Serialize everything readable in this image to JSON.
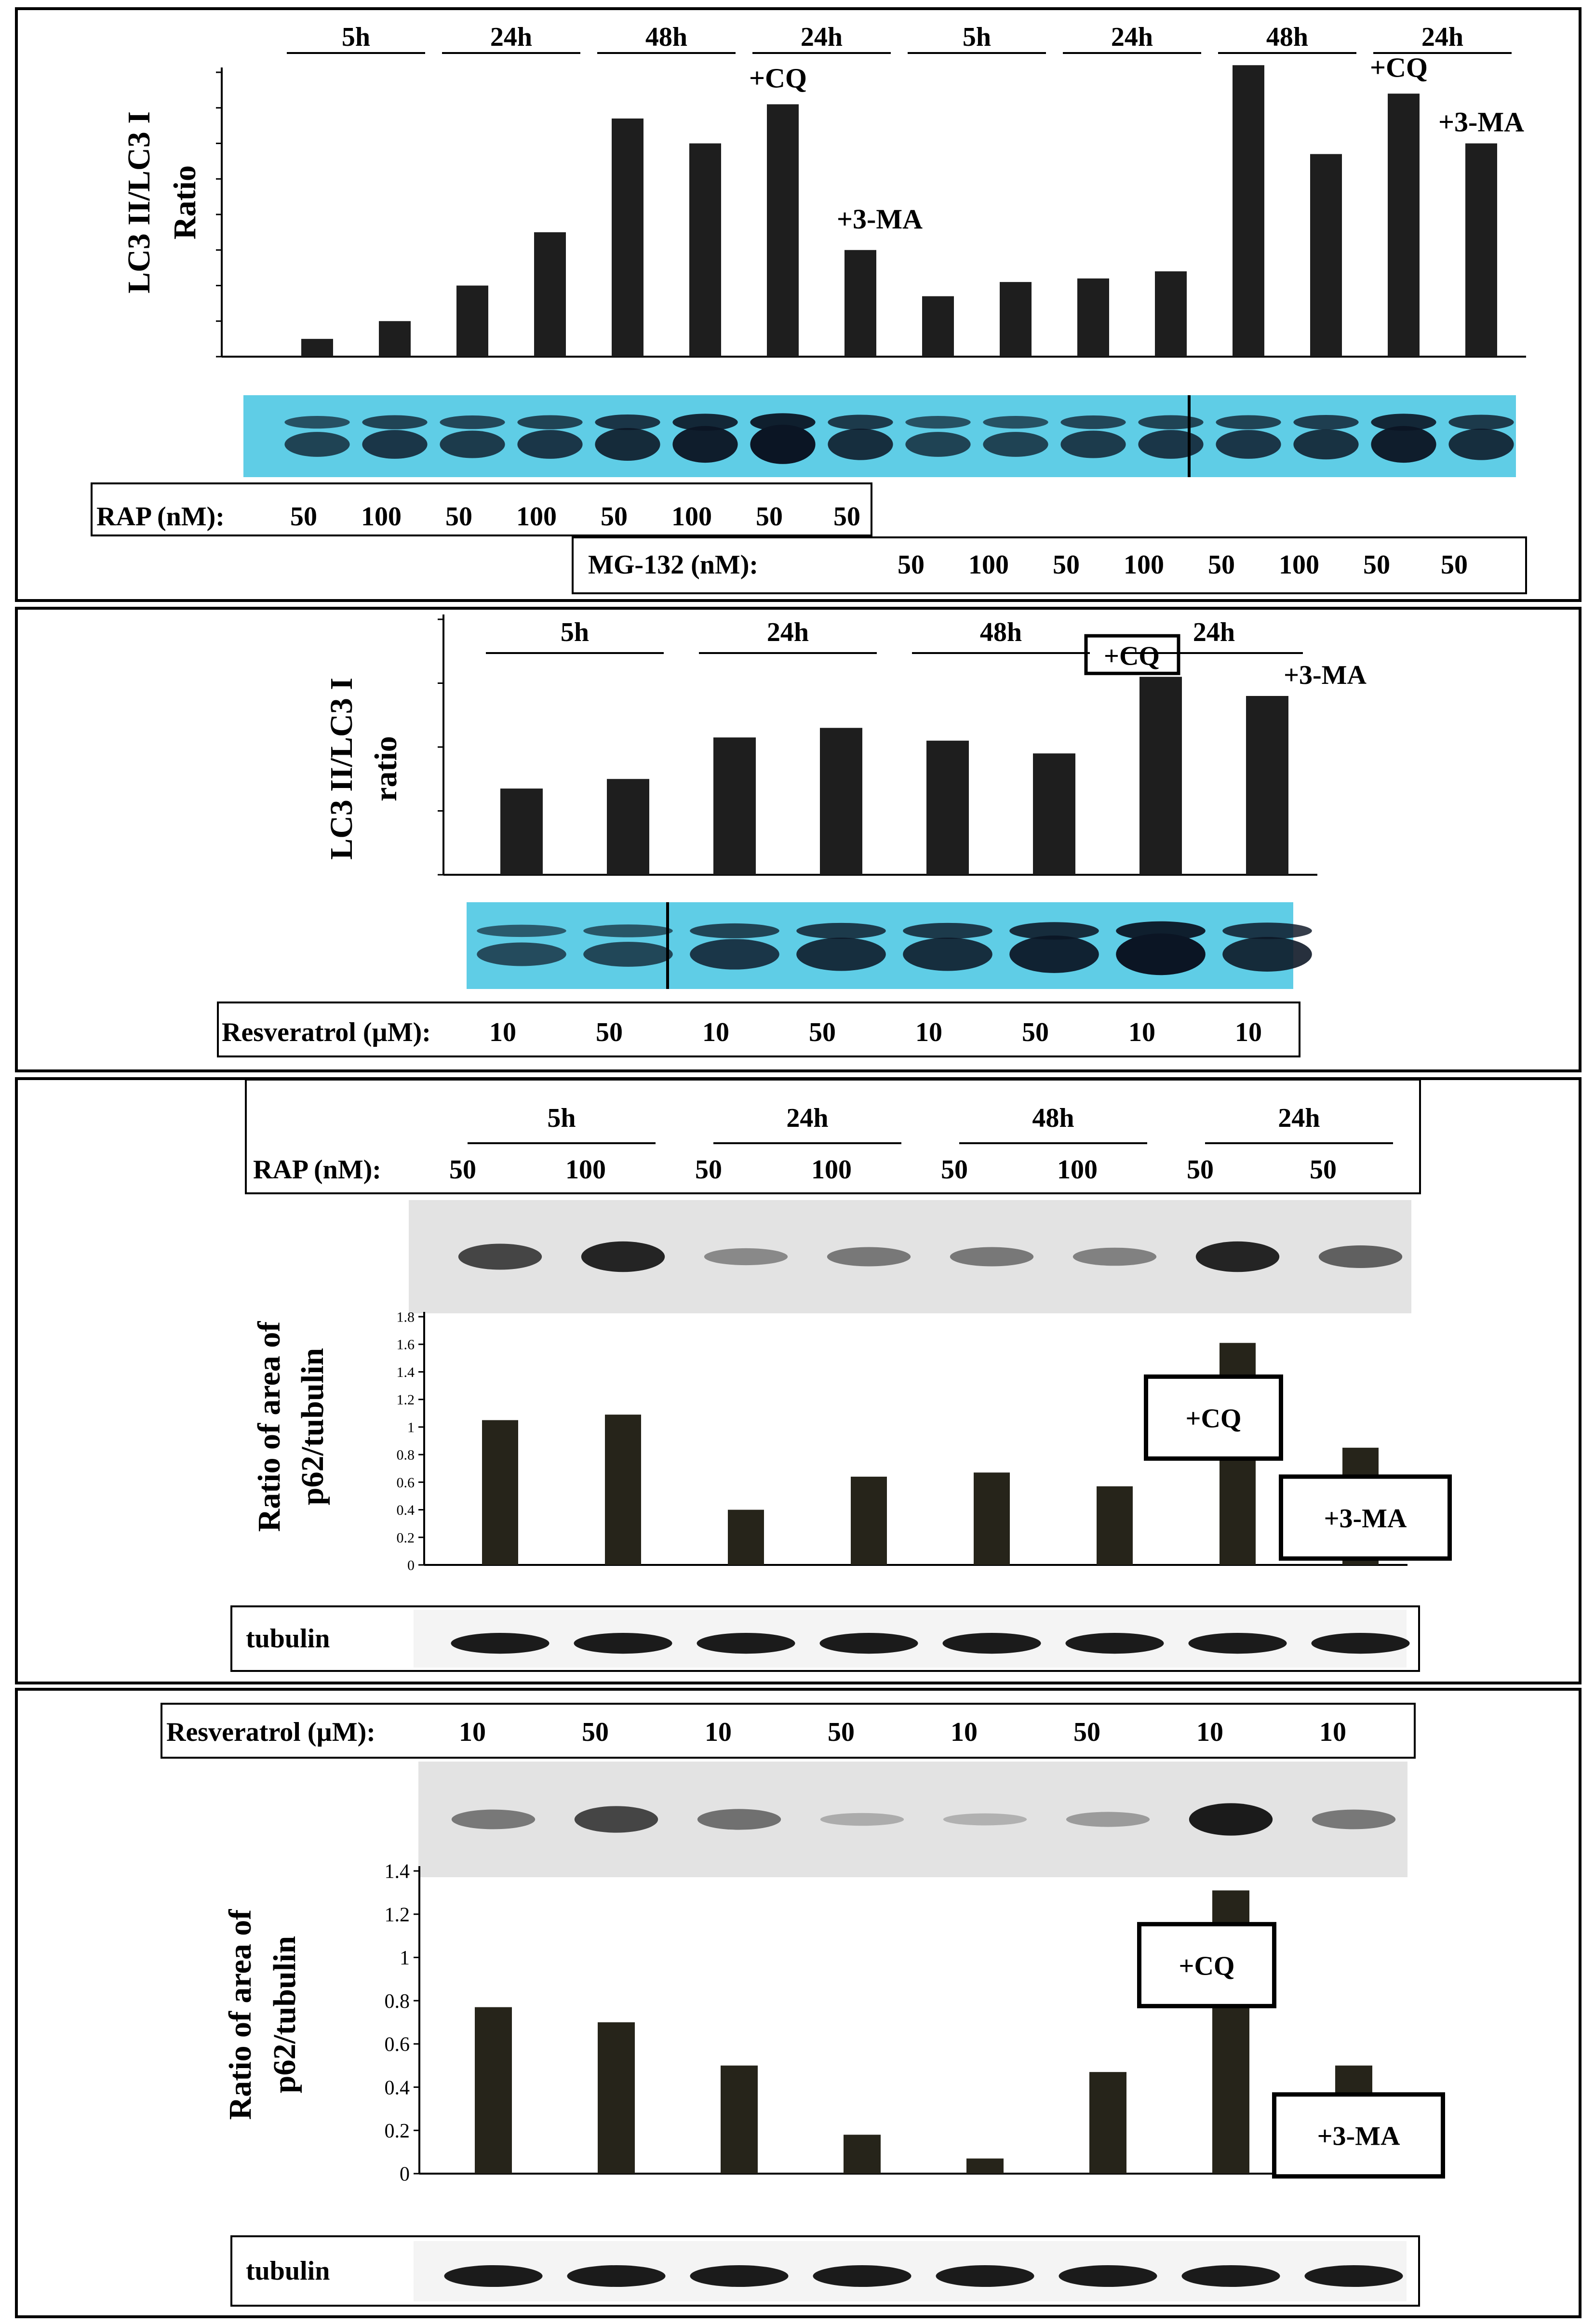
{
  "colors": {
    "bar_dark": "#1e1e1e",
    "bar_olive": "#26241a",
    "blot_cyan_bg": "#5fcde6",
    "blot_band_dark": "#0b1524",
    "blot_gray_bg": "#e3e3e3",
    "blot_band_gray": "#1b1b1b",
    "frame": "#000000"
  },
  "chart_data": [
    {
      "type": "bar",
      "panel": "A",
      "ylabel_line1": "LC3 II/LC3 I",
      "ylabel_line2": "Ratio",
      "y_tick_labels": [],
      "ylim": [
        0,
        8
      ],
      "y_tick_count": 8,
      "time_groups": [
        "5h",
        "24h",
        "48h",
        "24h",
        "5h",
        "24h",
        "48h",
        "24h"
      ],
      "values": [
        0.5,
        1.0,
        2.0,
        3.5,
        6.7,
        6.0,
        7.1,
        3.0,
        1.7,
        2.1,
        2.2,
        2.4,
        8.2,
        5.7,
        7.4,
        6.0
      ],
      "annotations": [
        {
          "bar": 6,
          "text": "+CQ"
        },
        {
          "bar": 7,
          "text": "+3-MA"
        },
        {
          "bar": 14,
          "text": "+CQ"
        },
        {
          "bar": 15,
          "text": "+3-MA"
        }
      ],
      "blot": {
        "type": "lc3",
        "style": "cyan",
        "lane_intensity": [
          0.45,
          0.6,
          0.55,
          0.6,
          0.75,
          0.9,
          1.0,
          0.7,
          0.45,
          0.45,
          0.55,
          0.6,
          0.6,
          0.65,
          0.9,
          0.7
        ]
      },
      "treatment_rows": [
        {
          "label": "RAP  (nM):",
          "values": [
            "50",
            "100",
            "50",
            "100",
            "50",
            "100",
            "50",
            "50"
          ]
        },
        {
          "label": "MG-132  (nM):",
          "values": [
            "50",
            "100",
            "50",
            "100",
            "50",
            "100",
            "50",
            "50"
          ]
        }
      ]
    },
    {
      "type": "bar",
      "panel": "B",
      "ylabel_line1": "LC3 II/LC3 I",
      "ylabel_line2": "ratio",
      "y_tick_labels": [],
      "ylim": [
        0,
        4
      ],
      "y_tick_count": 4,
      "time_groups": [
        "5h",
        "24h",
        "48h",
        "24h"
      ],
      "values": [
        1.35,
        1.5,
        2.15,
        2.3,
        2.1,
        1.9,
        3.1,
        2.8
      ],
      "annotations": [
        {
          "bar": 6,
          "text": "+CQ",
          "boxed": true
        },
        {
          "bar": 7,
          "text": "+3-MA"
        }
      ],
      "blot": {
        "type": "lc3",
        "style": "cyan",
        "lane_intensity": [
          0.35,
          0.4,
          0.6,
          0.7,
          0.7,
          0.85,
          1.0,
          0.75
        ]
      },
      "treatment_rows": [
        {
          "label": "Resveratrol  (µM):",
          "values": [
            "10",
            "50",
            "10",
            "50",
            "10",
            "50",
            "10",
            "10"
          ]
        }
      ]
    },
    {
      "type": "bar",
      "panel": "C",
      "ylabel_line1": "Ratio of area of",
      "ylabel_line2": "p62/tubulin",
      "y_tick_labels": [
        "0",
        "0.2",
        "0.4",
        "0.6",
        "0.8",
        "1",
        "1.2",
        "1.4",
        "1.6",
        "1.8"
      ],
      "ylim": [
        0,
        1.8
      ],
      "time_groups": [
        "5h",
        "24h",
        "48h",
        "24h"
      ],
      "values": [
        1.05,
        1.09,
        0.4,
        0.64,
        0.67,
        0.57,
        1.61,
        0.85
      ],
      "annotations": [
        {
          "bar": 6,
          "text": "+CQ",
          "boxed": true
        },
        {
          "bar": 7,
          "text": "+3-MA",
          "boxed": true
        }
      ],
      "blot": {
        "type": "p62",
        "style": "gray",
        "lane_intensity": [
          0.75,
          0.95,
          0.35,
          0.45,
          0.45,
          0.4,
          0.95,
          0.6
        ]
      },
      "tubulin_label": "tubulin",
      "treatment_rows": [
        {
          "label": "RAP  (nM):",
          "values": [
            "50",
            "100",
            "50",
            "100",
            "50",
            "100",
            "50",
            "50"
          ]
        }
      ]
    },
    {
      "type": "bar",
      "panel": "D",
      "ylabel_line1": "Ratio of area of",
      "ylabel_line2": "p62/tubulin",
      "y_tick_labels": [
        "0",
        "0.2",
        "0.4",
        "0.6",
        "0.8",
        "1",
        "1.2",
        "1.4"
      ],
      "ylim": [
        0,
        1.4
      ],
      "time_groups": [],
      "values": [
        0.77,
        0.7,
        0.5,
        0.18,
        0.07,
        0.47,
        1.31,
        0.5
      ],
      "annotations": [
        {
          "bar": 6,
          "text": "+CQ",
          "boxed": true
        },
        {
          "bar": 7,
          "text": "+3-MA",
          "boxed": true
        }
      ],
      "blot": {
        "type": "p62",
        "style": "gray",
        "lane_intensity": [
          0.45,
          0.75,
          0.5,
          0.15,
          0.12,
          0.25,
          1.0,
          0.45
        ]
      },
      "tubulin_label": "tubulin",
      "treatment_rows": [
        {
          "label": "Resveratrol  (µM):",
          "values": [
            "10",
            "50",
            "10",
            "50",
            "10",
            "50",
            "10",
            "10"
          ]
        }
      ]
    }
  ]
}
